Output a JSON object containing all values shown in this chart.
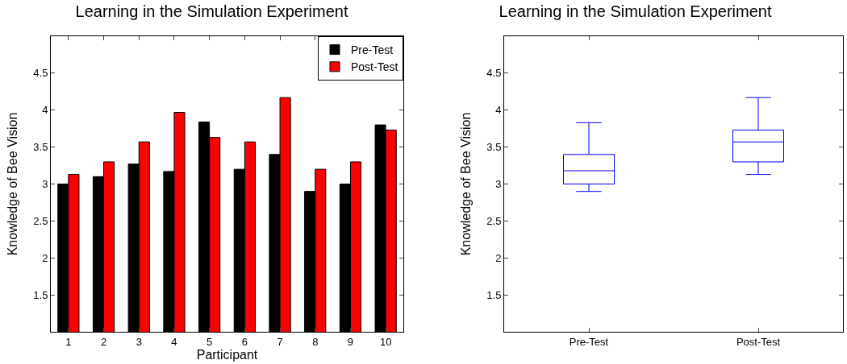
{
  "chart_data": [
    {
      "type": "bar",
      "title": "Learning in the Simulation Experiment",
      "xlabel": "Participant",
      "ylabel": "Knowledge of Bee Vision",
      "categories": [
        "1",
        "2",
        "3",
        "4",
        "5",
        "6",
        "7",
        "8",
        "9",
        "10"
      ],
      "series": [
        {
          "name": "Pre-Test",
          "color": "#000000",
          "values": [
            3.0,
            3.1,
            3.27,
            3.17,
            3.84,
            3.2,
            3.4,
            2.9,
            3.0,
            3.8
          ]
        },
        {
          "name": "Post-Test",
          "color": "#ff0000",
          "values": [
            3.13,
            3.3,
            3.57,
            3.97,
            3.63,
            3.57,
            4.17,
            3.2,
            3.3,
            3.73
          ]
        }
      ],
      "ylim": [
        1,
        5
      ],
      "yticks": [
        1.5,
        2,
        2.5,
        3,
        3.5,
        4,
        4.5
      ],
      "grid": false,
      "legend": "top right"
    },
    {
      "type": "box",
      "title": "Learning in the Simulation Experiment",
      "ylabel": "Knowledge of Bee Vision",
      "categories": [
        "Pre-Test",
        "Post-Test"
      ],
      "color": "#0000ff",
      "boxes": [
        {
          "low": 2.9,
          "q1": 3.0,
          "median": 3.18,
          "q3": 3.4,
          "high": 3.83
        },
        {
          "low": 3.13,
          "q1": 3.3,
          "median": 3.57,
          "q3": 3.73,
          "high": 4.17
        }
      ],
      "ylim": [
        1,
        5
      ],
      "yticks": [
        1.5,
        2,
        2.5,
        3,
        3.5,
        4,
        4.5
      ],
      "grid": false
    }
  ]
}
